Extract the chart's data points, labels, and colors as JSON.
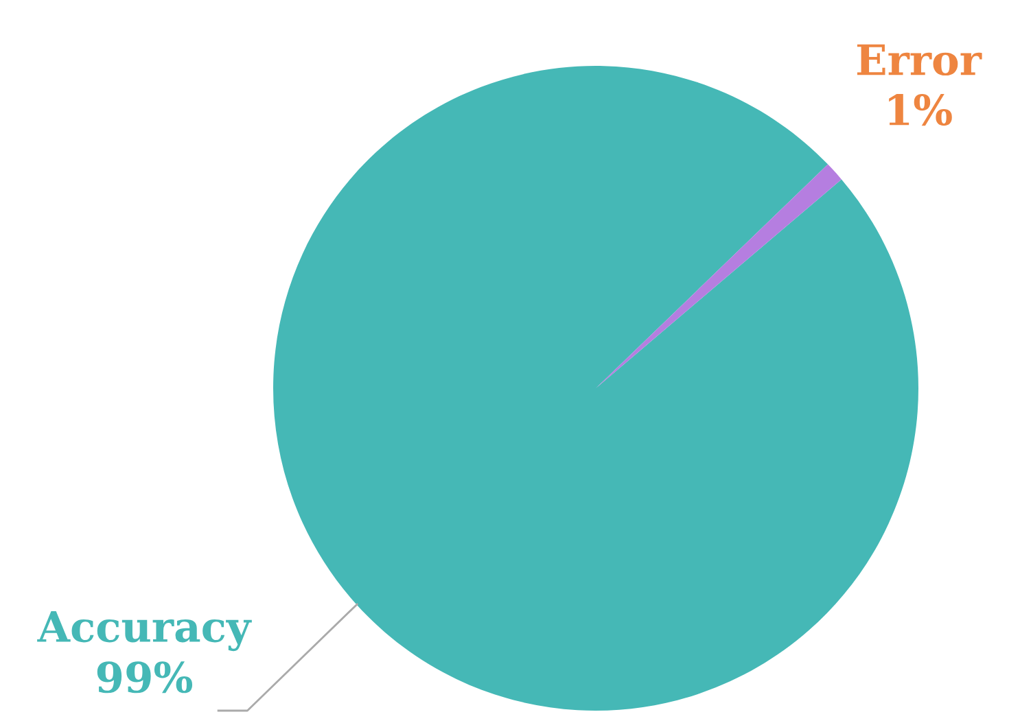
{
  "chart_data": {
    "type": "pie",
    "categories": [
      "Accuracy",
      "Error"
    ],
    "values": [
      99,
      1
    ],
    "colors": [
      "#45b8b6",
      "#b57ee0"
    ],
    "value_labels": [
      "99%",
      "1%"
    ]
  }
}
